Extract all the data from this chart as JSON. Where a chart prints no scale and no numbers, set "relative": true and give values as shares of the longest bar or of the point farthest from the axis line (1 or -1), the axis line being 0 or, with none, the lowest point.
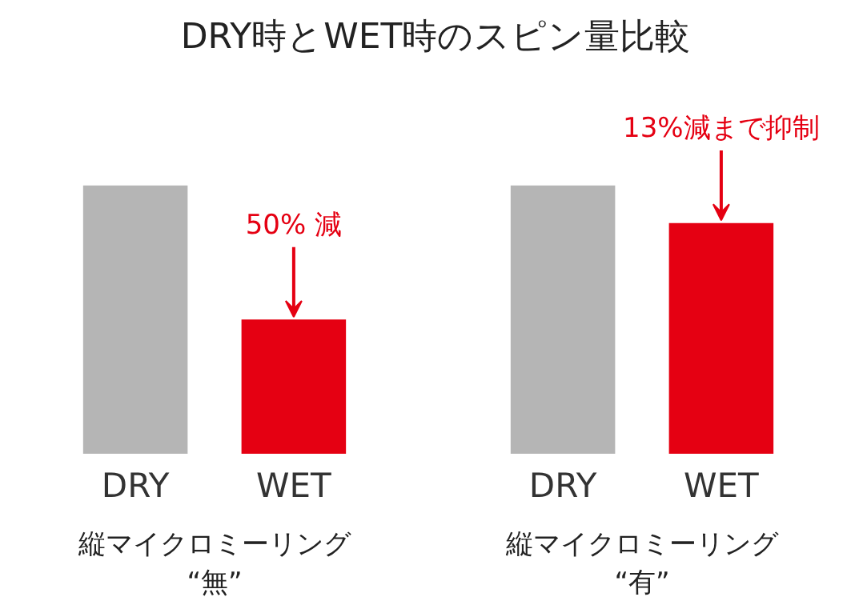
{
  "chart_data": [
    {
      "type": "bar",
      "title": "DRY時とWET時のスピン量比較",
      "relative": true,
      "categories": [
        "DRY",
        "WET"
      ],
      "values": [
        1,
        0.5
      ],
      "colors": [
        "#b5b5b5",
        "#e50012"
      ],
      "xlabel": "縦マイクロミーリング\n“無”",
      "annotations": [
        {
          "text": "50% 減",
          "x": "WET",
          "y": 0.5
        }
      ]
    },
    {
      "type": "bar",
      "relative": true,
      "categories": [
        "DRY",
        "WET"
      ],
      "values": [
        1,
        0.86
      ],
      "colors": [
        "#b5b5b5",
        "#e50012"
      ],
      "xlabel": "縦マイクロミーリング\n“有”",
      "annotations": [
        {
          "text": "13%減まで抑制",
          "x": "WET",
          "y": 0.86
        }
      ]
    }
  ]
}
